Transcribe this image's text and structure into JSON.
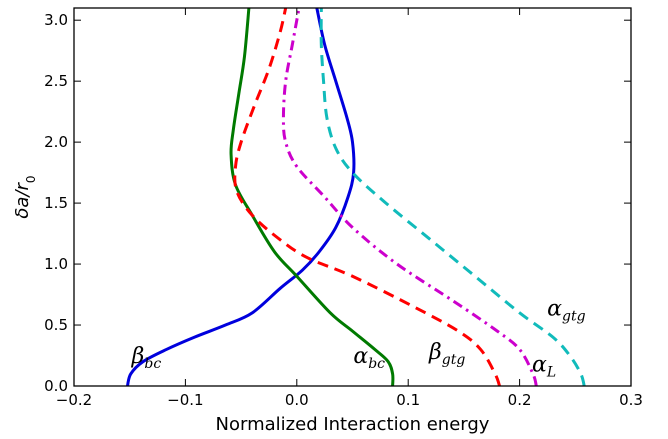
{
  "chart_data": {
    "type": "line",
    "title": "",
    "xlabel": "Normalized Interaction energy",
    "ylabel": {
      "base": "δa/r",
      "sub": "0"
    },
    "xlim": [
      -0.2,
      0.3
    ],
    "ylim": [
      0.0,
      3.1
    ],
    "xticks": [
      -0.2,
      -0.1,
      0.0,
      0.1,
      0.2,
      0.3
    ],
    "xtick_labels": [
      "−0.2",
      "−0.1",
      "0.0",
      "0.1",
      "0.2",
      "0.3"
    ],
    "yticks": [
      0.0,
      0.5,
      1.0,
      1.5,
      2.0,
      2.5,
      3.0
    ],
    "ytick_labels": [
      "0.0",
      "0.5",
      "1.0",
      "1.5",
      "2.0",
      "2.5",
      "3.0"
    ],
    "grid": false,
    "legend": "none (curves labeled directly)",
    "series": [
      {
        "label": {
          "base": "β",
          "sub": "bc"
        },
        "color": "#0000dd",
        "style": "solid",
        "points": [
          [
            -0.152,
            0.0
          ],
          [
            -0.149,
            0.1
          ],
          [
            -0.138,
            0.2
          ],
          [
            -0.117,
            0.3
          ],
          [
            -0.092,
            0.4
          ],
          [
            -0.064,
            0.5
          ],
          [
            -0.04,
            0.6
          ],
          [
            -0.015,
            0.8
          ],
          [
            0.005,
            0.95
          ],
          [
            0.02,
            1.1
          ],
          [
            0.035,
            1.3
          ],
          [
            0.046,
            1.55
          ],
          [
            0.051,
            1.75
          ],
          [
            0.05,
            2.0
          ],
          [
            0.045,
            2.2
          ],
          [
            0.035,
            2.5
          ],
          [
            0.025,
            2.8
          ],
          [
            0.018,
            3.1
          ]
        ]
      },
      {
        "label": {
          "base": "α",
          "sub": "bc"
        },
        "color": "#007a00",
        "style": "solid",
        "points": [
          [
            0.086,
            0.0
          ],
          [
            0.086,
            0.1
          ],
          [
            0.082,
            0.2
          ],
          [
            0.07,
            0.3
          ],
          [
            0.05,
            0.45
          ],
          [
            0.03,
            0.6
          ],
          [
            0.0,
            0.9
          ],
          [
            -0.02,
            1.1
          ],
          [
            -0.04,
            1.4
          ],
          [
            -0.055,
            1.65
          ],
          [
            -0.059,
            1.9
          ],
          [
            -0.057,
            2.1
          ],
          [
            -0.052,
            2.4
          ],
          [
            -0.047,
            2.7
          ],
          [
            -0.043,
            3.1
          ]
        ]
      },
      {
        "label": {
          "base": "β",
          "sub": "gtg"
        },
        "color": "#ff0000",
        "style": "dashed",
        "points": [
          [
            0.182,
            0.0
          ],
          [
            0.178,
            0.1
          ],
          [
            0.165,
            0.3
          ],
          [
            0.145,
            0.45
          ],
          [
            0.105,
            0.65
          ],
          [
            0.05,
            0.9
          ],
          [
            0.01,
            1.05
          ],
          [
            -0.015,
            1.2
          ],
          [
            -0.04,
            1.4
          ],
          [
            -0.054,
            1.6
          ],
          [
            -0.055,
            1.8
          ],
          [
            -0.05,
            2.0
          ],
          [
            -0.038,
            2.3
          ],
          [
            -0.025,
            2.6
          ],
          [
            -0.015,
            2.9
          ],
          [
            -0.01,
            3.1
          ]
        ]
      },
      {
        "label": {
          "base": "α",
          "sub": "L"
        },
        "color": "#cc00cc",
        "style": "dashdot",
        "points": [
          [
            0.215,
            0.0
          ],
          [
            0.212,
            0.1
          ],
          [
            0.2,
            0.3
          ],
          [
            0.18,
            0.45
          ],
          [
            0.14,
            0.7
          ],
          [
            0.09,
            1.0
          ],
          [
            0.05,
            1.3
          ],
          [
            0.025,
            1.55
          ],
          [
            0.0,
            1.8
          ],
          [
            -0.01,
            2.0
          ],
          [
            -0.012,
            2.2
          ],
          [
            -0.01,
            2.5
          ],
          [
            -0.004,
            2.8
          ],
          [
            0.002,
            3.1
          ]
        ]
      },
      {
        "label": {
          "base": "α",
          "sub": "gtg"
        },
        "color": "#11bbbb",
        "style": "dashed",
        "points": [
          [
            0.258,
            0.0
          ],
          [
            0.255,
            0.1
          ],
          [
            0.245,
            0.25
          ],
          [
            0.23,
            0.4
          ],
          [
            0.2,
            0.6
          ],
          [
            0.16,
            0.9
          ],
          [
            0.12,
            1.2
          ],
          [
            0.08,
            1.5
          ],
          [
            0.05,
            1.75
          ],
          [
            0.035,
            1.95
          ],
          [
            0.027,
            2.2
          ],
          [
            0.024,
            2.5
          ],
          [
            0.022,
            2.8
          ],
          [
            0.022,
            3.1
          ]
        ]
      }
    ]
  }
}
